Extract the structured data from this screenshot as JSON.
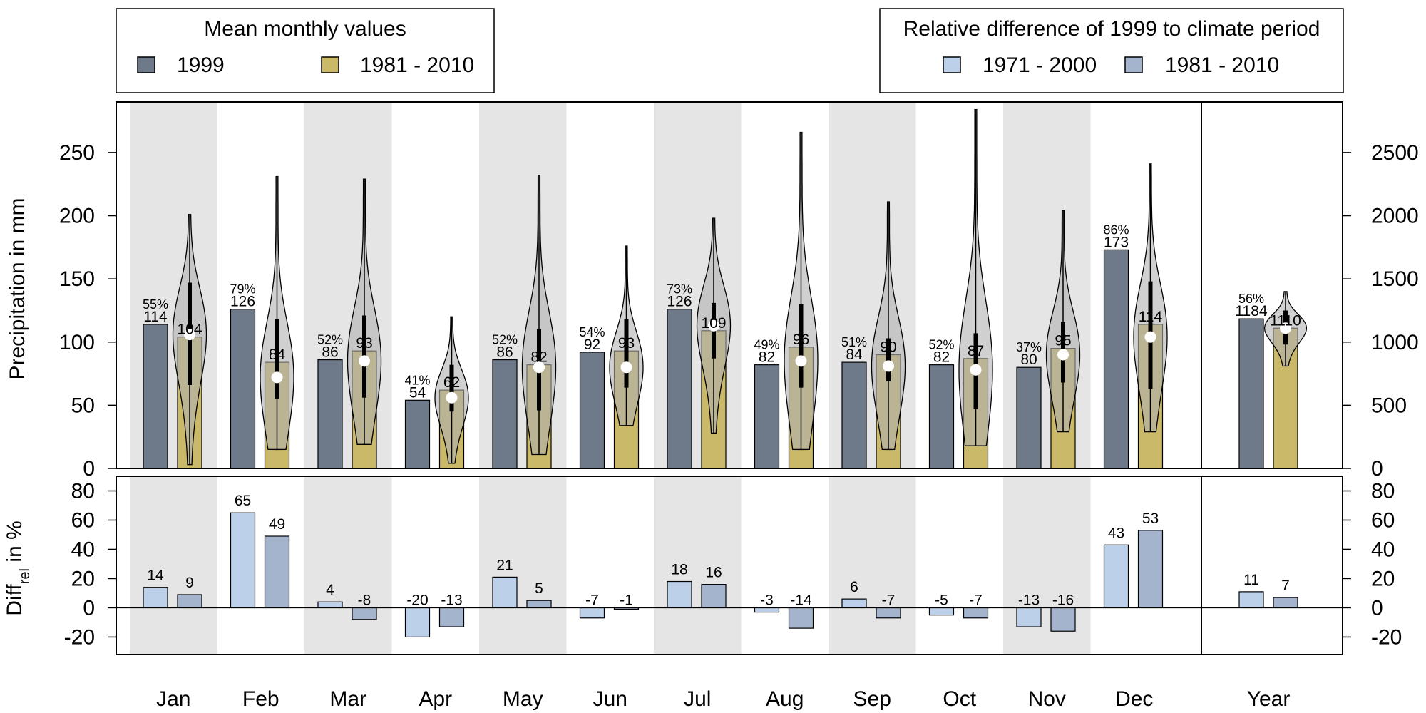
{
  "chart_data": {
    "type": "bar",
    "categories": [
      "Jan",
      "Feb",
      "Mar",
      "Apr",
      "May",
      "Jun",
      "Jul",
      "Aug",
      "Sep",
      "Oct",
      "Nov",
      "Dec"
    ],
    "year_label": "Year",
    "top_panel": {
      "ylabel": "Precipitation in mm",
      "ylim": [
        0,
        290
      ],
      "yticks": [
        0,
        50,
        100,
        150,
        200,
        250
      ],
      "right_axis_ticks": [
        0,
        500,
        1000,
        1500,
        2000,
        2500
      ],
      "right_axis_ylim": [
        0,
        2900
      ],
      "series": [
        {
          "name": "1999",
          "color": "#6e7a8a",
          "values": [
            114,
            126,
            86,
            54,
            86,
            92,
            126,
            82,
            84,
            82,
            80,
            173
          ],
          "labels": [
            "114",
            "126",
            "86",
            "54",
            "86",
            "92",
            "126",
            "82",
            "84",
            "82",
            "80",
            "173"
          ],
          "annual": 1184,
          "annual_label": "1184"
        },
        {
          "name": "1981 - 2010",
          "color": "#cbb96a",
          "values": [
            104,
            84,
            93,
            62,
            82,
            93,
            109,
            96,
            90,
            87,
            95,
            114
          ],
          "labels": [
            "104",
            "84",
            "93",
            "62",
            "82",
            "93",
            "109",
            "96",
            "90",
            "87",
            "95",
            "114"
          ],
          "annual": 1110,
          "annual_label": "1110"
        }
      ],
      "percent_labels": [
        "55%",
        "79%",
        "52%",
        "41%",
        "52%",
        "54%",
        "73%",
        "49%",
        "51%",
        "52%",
        "37%",
        "86%"
      ],
      "annual_percent_label": "56%",
      "violins": {
        "min": [
          3,
          15,
          19,
          4,
          11,
          34,
          28,
          15,
          15,
          18,
          29,
          29
        ],
        "max": [
          201,
          231,
          229,
          120,
          232,
          176,
          198,
          266,
          211,
          284,
          204,
          241
        ],
        "q1": [
          66,
          55,
          56,
          45,
          46,
          64,
          87,
          64,
          69,
          47,
          68,
          63
        ],
        "q3": [
          147,
          118,
          121,
          82,
          110,
          118,
          131,
          130,
          103,
          107,
          116,
          148
        ],
        "median": [
          106,
          72,
          85,
          56,
          80,
          80,
          113,
          85,
          81,
          78,
          90,
          104
        ],
        "annual": {
          "min": 810,
          "max": 1400,
          "q1": 980,
          "q3": 1250,
          "median": 1110
        }
      }
    },
    "bottom_panel": {
      "ylabel_main": "Diff",
      "ylabel_sub": "rel",
      "ylabel_rest": " in %",
      "ylim": [
        -32,
        90
      ],
      "yticks": [
        -20,
        0,
        20,
        40,
        60,
        80
      ],
      "series": [
        {
          "name": "1971 - 2000",
          "color": "#bcd0ea",
          "values": [
            14,
            65,
            4,
            -20,
            21,
            -7,
            18,
            -3,
            6,
            -5,
            -13,
            43
          ],
          "labels": [
            "14",
            "65",
            "4",
            "-20",
            "21",
            "-7",
            "18",
            "-3",
            "6",
            "-5",
            "-13",
            "43"
          ],
          "annual": 11,
          "annual_label": "11"
        },
        {
          "name": "1981 - 2010",
          "color": "#a3b4cc",
          "values": [
            9,
            49,
            -8,
            -13,
            5,
            -1,
            16,
            -14,
            -7,
            -7,
            -16,
            53
          ],
          "labels": [
            "9",
            "49",
            "-8",
            "-13",
            "5",
            "-1",
            "16",
            "-14",
            "-7",
            "-7",
            "-16",
            "53"
          ],
          "annual": 7,
          "annual_label": "7"
        }
      ]
    },
    "legend_left": {
      "title": "Mean monthly values",
      "entries": [
        "1999",
        "1981 - 2010"
      ]
    },
    "legend_right": {
      "title": "Relative difference of 1999 to climate period",
      "entries": [
        "1971 - 2000",
        "1981 - 2010"
      ]
    },
    "colors": {
      "stripe": "#e5e5e5",
      "violin": "#b0b0b0",
      "median_dot": "#ffffff"
    }
  }
}
